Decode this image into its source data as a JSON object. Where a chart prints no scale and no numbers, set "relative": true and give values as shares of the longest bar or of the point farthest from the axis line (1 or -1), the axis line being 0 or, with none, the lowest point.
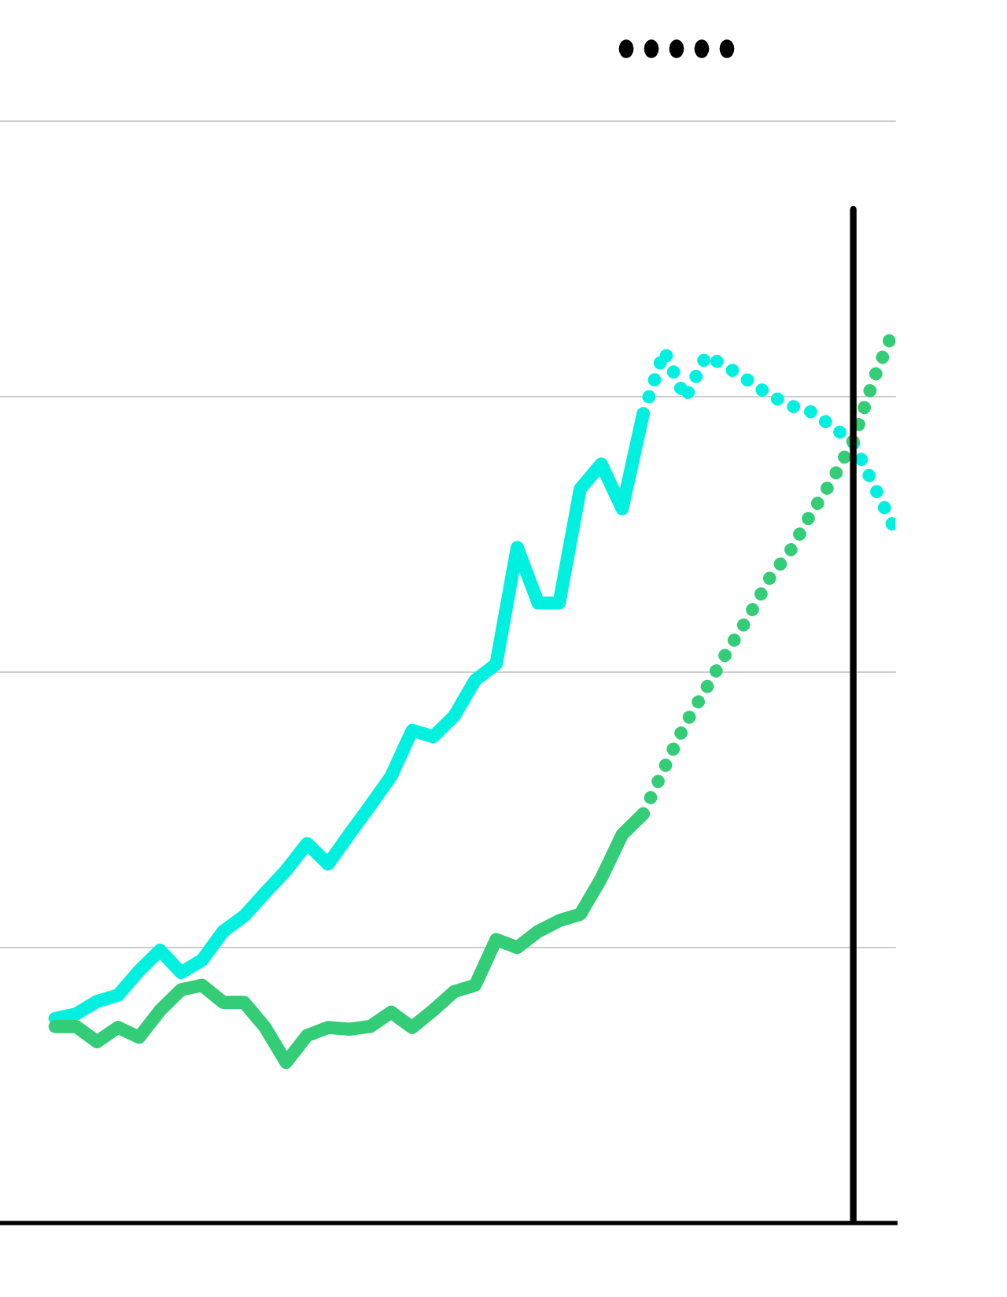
{
  "chart_data": {
    "type": "line",
    "relative": true,
    "legend": false,
    "marker": "none",
    "grid": "y",
    "categories": [
      null,
      null,
      null,
      null,
      null,
      null,
      null,
      null,
      null,
      null,
      null,
      null,
      null,
      null,
      null,
      null,
      null,
      null,
      null,
      null,
      null,
      null,
      null,
      null,
      null,
      null,
      null,
      null,
      null,
      null,
      null,
      null,
      null,
      null,
      null,
      null,
      null,
      null,
      null,
      null,
      null
    ],
    "series": [
      {
        "color": "#00f0e0",
        "line_style": "solid",
        "values": [
          0.228,
          0.233,
          0.247,
          0.254,
          0.281,
          0.304,
          0.279,
          0.293,
          0.325,
          0.342,
          0.368,
          0.393,
          0.423,
          0.4,
          0.433,
          0.465,
          0.498,
          0.549,
          0.542,
          0.565,
          0.605,
          0.623,
          0.753,
          0.691,
          0.691,
          0.818,
          0.846,
          0.796,
          0.902,
          null,
          null,
          null,
          null,
          null,
          null,
          null,
          null,
          null,
          null,
          null,
          null
        ]
      },
      {
        "color": "#33cc77",
        "line_style": "solid",
        "values": [
          0.219,
          0.219,
          0.202,
          0.218,
          0.207,
          0.237,
          0.26,
          0.265,
          0.246,
          0.246,
          0.218,
          0.179,
          0.209,
          0.218,
          0.216,
          0.219,
          0.235,
          0.218,
          0.237,
          0.258,
          0.265,
          0.316,
          0.307,
          0.325,
          0.337,
          0.344,
          0.384,
          0.433,
          0.456,
          null,
          null,
          null,
          null,
          null,
          null,
          null,
          null,
          null,
          null,
          null,
          null
        ]
      },
      {
        "color": "#00f0e0",
        "line_style": "dotted",
        "values": [
          null,
          null,
          null,
          null,
          null,
          null,
          null,
          null,
          null,
          null,
          null,
          null,
          null,
          null,
          null,
          null,
          null,
          null,
          null,
          null,
          null,
          null,
          null,
          null,
          null,
          null,
          null,
          null,
          0.902,
          0.972,
          0.919,
          0.967,
          0.954,
          0.939,
          0.923,
          0.911,
          0.904,
          0.888,
          0.87,
          0.821,
          0.772
        ]
      },
      {
        "color": "#33cc77",
        "line_style": "dotted",
        "values": [
          null,
          null,
          null,
          null,
          null,
          null,
          null,
          null,
          null,
          null,
          null,
          null,
          null,
          null,
          null,
          null,
          null,
          null,
          null,
          null,
          null,
          null,
          null,
          null,
          null,
          null,
          null,
          null,
          0.456,
          0.507,
          0.556,
          0.596,
          0.637,
          0.675,
          0.718,
          0.749,
          0.791,
          0.828,
          0.872,
          0.942,
          1
        ]
      }
    ]
  }
}
